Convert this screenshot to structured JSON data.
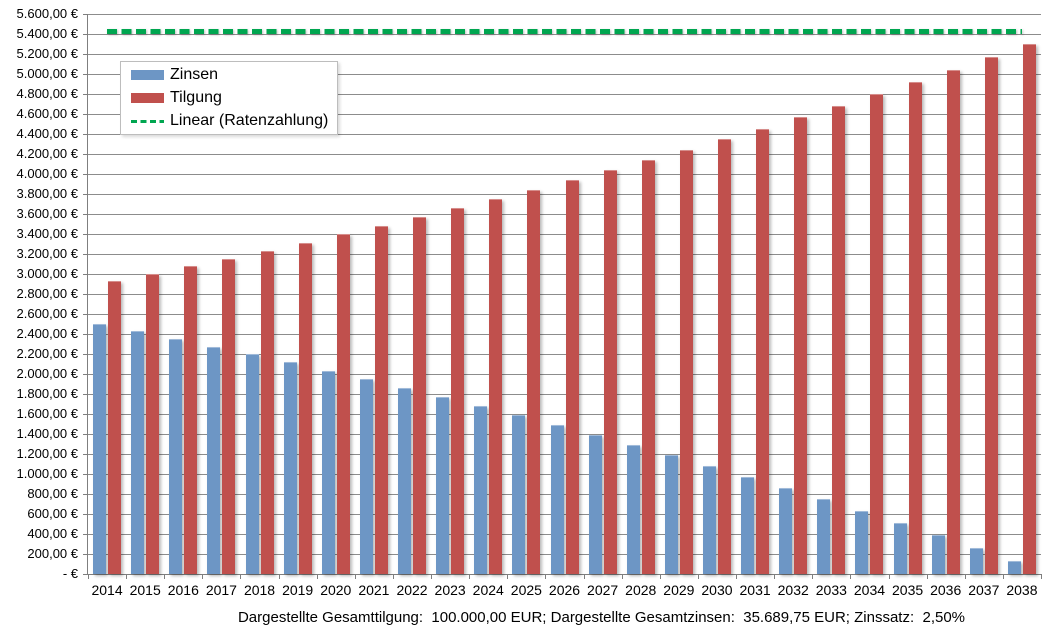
{
  "chart_data": {
    "type": "bar",
    "title": "",
    "xlabel": "",
    "ylabel": "",
    "categories": [
      "2014",
      "2015",
      "2016",
      "2017",
      "2018",
      "2019",
      "2020",
      "2021",
      "2022",
      "2023",
      "2024",
      "2025",
      "2026",
      "2027",
      "2028",
      "2029",
      "2030",
      "2031",
      "2032",
      "2033",
      "2034",
      "2035",
      "2036",
      "2037",
      "2038"
    ],
    "series": [
      {
        "name": "Zinsen",
        "color": "#6D96C5",
        "values": [
          2500.0,
          2426.81,
          2351.79,
          2274.9,
          2196.08,
          2115.29,
          2032.48,
          1947.61,
          1860.61,
          1771.43,
          1680.03,
          1586.34,
          1490.31,
          1391.88,
          1290.98,
          1187.57,
          1081.57,
          972.92,
          861.55,
          747.4,
          630.39,
          510.46,
          387.54,
          261.53,
          132.38
        ]
      },
      {
        "name": "Tilgung",
        "color": "#C0504D",
        "values": [
          2927.59,
          3000.78,
          3075.8,
          3152.69,
          3231.51,
          3312.3,
          3395.11,
          3479.98,
          3566.98,
          3656.16,
          3747.56,
          3841.25,
          3937.28,
          4035.71,
          4136.61,
          4240.02,
          4346.02,
          4454.67,
          4566.04,
          4680.19,
          4797.19,
          4917.12,
          5040.05,
          5166.05,
          5295.21
        ]
      }
    ],
    "trendline": {
      "name": "Linear (Ratenzahlung)",
      "color": "#00A650",
      "style": "dashed",
      "value": 5427.59
    },
    "ylim": [
      0,
      5600
    ],
    "ytick_step": 200,
    "y_zero_label": "- €",
    "y_label_suffix": " €",
    "grid": true,
    "legend_position": "top-left-inside"
  },
  "caption": {
    "text": "Dargestellte Gesamttilgung:  100.000,00 EUR; Dargestellte Gesamtzinsen:  35.689,75 EUR; Zinssatz:  2,50%"
  }
}
